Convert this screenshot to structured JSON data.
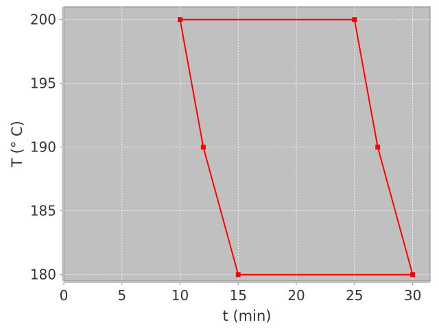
{
  "chart_data": {
    "type": "line",
    "xlabel": "t (min)",
    "ylabel": "T (° C)",
    "xlim": [
      0,
      31.5
    ],
    "ylim": [
      179.5,
      201
    ],
    "xticks": [
      0,
      5,
      10,
      15,
      20,
      25,
      30
    ],
    "yticks": [
      180,
      185,
      190,
      195,
      200
    ],
    "grid": true,
    "legend": "none",
    "series": [
      {
        "color": "#ff0000",
        "marker": "square",
        "x": [
          10,
          12,
          15,
          30,
          27,
          25,
          10
        ],
        "y": [
          200,
          190,
          180,
          180,
          190,
          200,
          200
        ]
      }
    ]
  },
  "colors": {
    "plot_background": "#c0c0c0",
    "grid": "#ffffff",
    "series": "#ff0000"
  }
}
